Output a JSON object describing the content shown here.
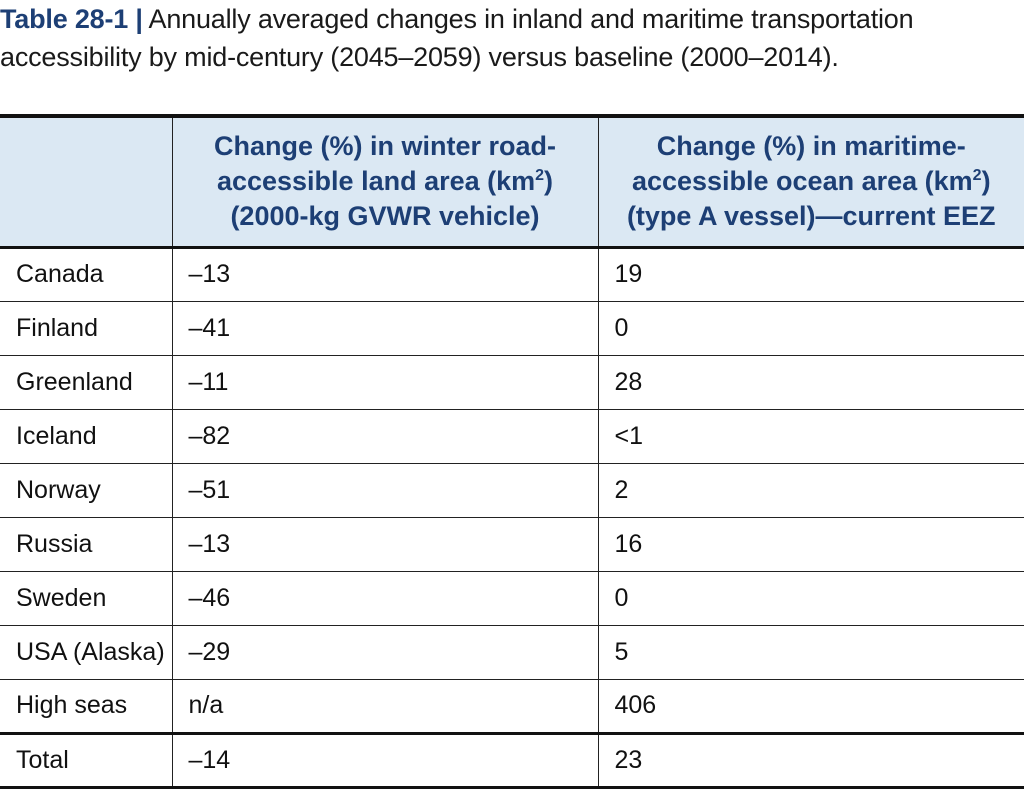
{
  "caption": {
    "label": "Table 28-1",
    "separator": "|",
    "text": "Annually averaged changes in inland and maritime transportation accessibility by mid-century (2045–2059) versus baseline (2000–2014)."
  },
  "table": {
    "headers": {
      "col1": "",
      "col2_line1": "Change (%) in winter road-",
      "col2_line2": "accessible land area (km",
      "col2_sup": "2",
      "col2_line2_end": ")",
      "col2_line3": "(2000-kg GVWR vehicle)",
      "col3_line1": "Change (%) in maritime-",
      "col3_line2": "accessible ocean area (km",
      "col3_sup": "2",
      "col3_line2_end": ")",
      "col3_line3": "(type A vessel)—current EEZ"
    },
    "rows": [
      {
        "region": "Canada",
        "land": "–13",
        "ocean": "19"
      },
      {
        "region": "Finland",
        "land": "–41",
        "ocean": "0"
      },
      {
        "region": "Greenland",
        "land": "–11",
        "ocean": "28"
      },
      {
        "region": "Iceland",
        "land": "–82",
        "ocean": "<1"
      },
      {
        "region": "Norway",
        "land": "–51",
        "ocean": "2"
      },
      {
        "region": "Russia",
        "land": "–13",
        "ocean": "16"
      },
      {
        "region": "Sweden",
        "land": "–46",
        "ocean": "0"
      },
      {
        "region": "USA (Alaska)",
        "land": "–29",
        "ocean": "5"
      },
      {
        "region": "High seas",
        "land": "n/a",
        "ocean": "406"
      }
    ],
    "total": {
      "region": "Total",
      "land": "–14",
      "ocean": "23"
    }
  },
  "colors": {
    "header_text": "#1d3f75",
    "header_background": "#dbe8f3",
    "rule": "#111111"
  }
}
